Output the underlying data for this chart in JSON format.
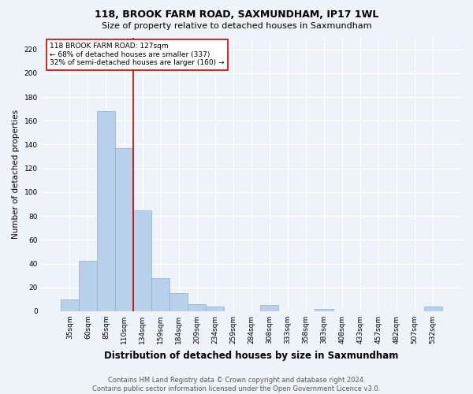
{
  "title": "118, BROOK FARM ROAD, SAXMUNDHAM, IP17 1WL",
  "subtitle": "Size of property relative to detached houses in Saxmundham",
  "xlabel": "Distribution of detached houses by size in Saxmundham",
  "ylabel": "Number of detached properties",
  "categories": [
    "35sqm",
    "60sqm",
    "85sqm",
    "110sqm",
    "134sqm",
    "159sqm",
    "184sqm",
    "209sqm",
    "234sqm",
    "259sqm",
    "284sqm",
    "308sqm",
    "333sqm",
    "358sqm",
    "383sqm",
    "408sqm",
    "433sqm",
    "457sqm",
    "482sqm",
    "507sqm",
    "532sqm"
  ],
  "values": [
    10,
    42,
    168,
    137,
    85,
    28,
    15,
    6,
    4,
    0,
    0,
    5,
    0,
    0,
    2,
    0,
    0,
    0,
    0,
    0,
    4
  ],
  "bar_color": "#b8d0ea",
  "bar_edge_color": "#8ab0d0",
  "vline_color": "#cc0000",
  "vline_index": 3.5,
  "annotation_text": "118 BROOK FARM ROAD: 127sqm\n← 68% of detached houses are smaller (337)\n32% of semi-detached houses are larger (160) →",
  "annotation_box_facecolor": "#ffffff",
  "annotation_box_edgecolor": "#cc0000",
  "ylim": [
    0,
    230
  ],
  "yticks": [
    0,
    20,
    40,
    60,
    80,
    100,
    120,
    140,
    160,
    180,
    200,
    220
  ],
  "footer_text": "Contains HM Land Registry data © Crown copyright and database right 2024.\nContains public sector information licensed under the Open Government Licence v3.0.",
  "background_color": "#eef2f9",
  "plot_background_color": "#eef2f9",
  "grid_color": "#ffffff",
  "title_fontsize": 9,
  "subtitle_fontsize": 8,
  "xlabel_fontsize": 8.5,
  "ylabel_fontsize": 7.5,
  "tick_fontsize": 6.5,
  "annotation_fontsize": 6.5,
  "footer_fontsize": 6
}
